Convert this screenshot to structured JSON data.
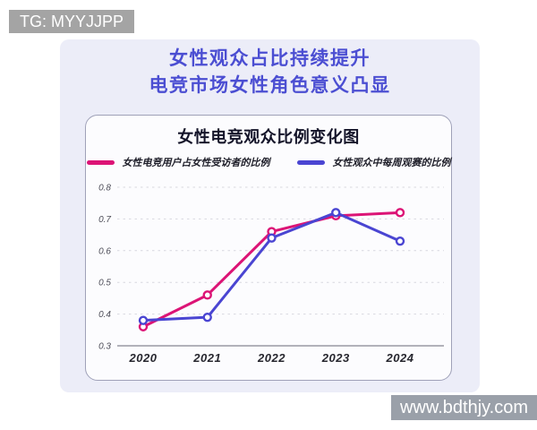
{
  "page": {
    "tg_badge": "TG: MYYJJPP",
    "website_watermark": "www.bdthjy.com",
    "title_line1": "女性观众占比持续提升",
    "title_line2": "电竞市场女性角色意义凸显",
    "title_color": "#4b4ed2",
    "panel_color": "#ecedf8",
    "badge_color": "#a4a4a4",
    "watermark_color": "#9aa0a9"
  },
  "chart_data": {
    "type": "line",
    "title": "女性电竞观众比例变化图",
    "categories": [
      "2020",
      "2021",
      "2022",
      "2023",
      "2024"
    ],
    "series": [
      {
        "name": "女性电竞用户占女性受访者的比例",
        "color": "#dc1476",
        "values": [
          0.36,
          0.46,
          0.66,
          0.71,
          0.72
        ]
      },
      {
        "name": "女性观众中每周观赛的比例",
        "color": "#4a45d2",
        "values": [
          0.38,
          0.39,
          0.64,
          0.72,
          0.63
        ]
      }
    ],
    "xlabel": "",
    "ylabel": "",
    "ylim": [
      0.3,
      0.8
    ],
    "yticks": [
      0.3,
      0.4,
      0.5,
      0.6,
      0.7,
      0.8
    ],
    "grid": "horizontal-dashed",
    "legend_position": "top",
    "marker": "open-circle",
    "axis_baseline": "solid"
  }
}
